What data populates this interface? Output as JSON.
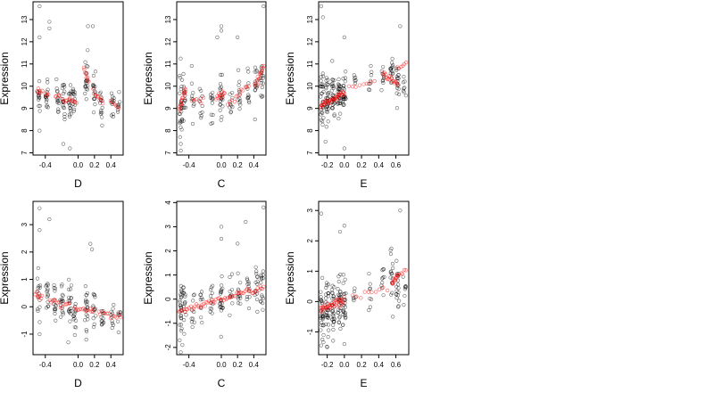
{
  "colors": {
    "observed": "#000000",
    "fitted": "#ff0000",
    "background": "#ffffff"
  },
  "chart_data": [
    {
      "type": "scatter",
      "panel": "row1-col1",
      "xlabel": "D",
      "ylabel": "Expression",
      "xlim": [
        -0.55,
        0.55
      ],
      "ylim": [
        6.9,
        13.8
      ],
      "xticks": [
        -0.4,
        0.0,
        0.2,
        0.4
      ],
      "xtick_labels": [
        "-0.4",
        "0.0",
        "0.2",
        "0.4"
      ],
      "yticks": [
        7,
        8,
        9,
        10,
        11,
        12,
        13
      ],
      "ytick_labels": [
        "7",
        "8",
        "9",
        "10",
        "11",
        "12",
        "13"
      ],
      "observed_clusters": [
        {
          "x": -0.48,
          "center": 9.6,
          "spread": 0.9,
          "n": 14
        },
        {
          "x": -0.38,
          "center": 9.7,
          "spread": 1.1,
          "n": 16
        },
        {
          "x": -0.25,
          "center": 9.5,
          "spread": 0.8,
          "n": 14
        },
        {
          "x": -0.18,
          "center": 9.4,
          "spread": 0.9,
          "n": 18
        },
        {
          "x": -0.1,
          "center": 9.3,
          "spread": 1.0,
          "n": 18
        },
        {
          "x": -0.05,
          "center": 9.3,
          "spread": 0.9,
          "n": 14
        },
        {
          "x": 0.1,
          "center": 10.3,
          "spread": 1.0,
          "n": 20
        },
        {
          "x": 0.2,
          "center": 9.6,
          "spread": 0.9,
          "n": 16
        },
        {
          "x": 0.28,
          "center": 9.2,
          "spread": 0.8,
          "n": 14
        },
        {
          "x": 0.42,
          "center": 9.3,
          "spread": 0.8,
          "n": 12
        },
        {
          "x": 0.5,
          "center": 9.1,
          "spread": 0.5,
          "n": 8
        }
      ],
      "outliers": [
        [
          -0.47,
          13.6
        ],
        [
          -0.47,
          12.2
        ],
        [
          -0.35,
          12.9
        ],
        [
          -0.35,
          12.6
        ],
        [
          0.12,
          12.7
        ],
        [
          0.18,
          12.7
        ],
        [
          -0.18,
          7.4
        ],
        [
          -0.1,
          7.2
        ],
        [
          -0.47,
          8.0
        ]
      ],
      "fitted": [
        {
          "x_from": -0.5,
          "x_to": -0.44,
          "y_from": 9.85,
          "y_to": 9.75,
          "n": 6
        },
        {
          "x_from": -0.4,
          "x_to": -0.36,
          "y_from": 9.65,
          "y_to": 9.6,
          "n": 4
        },
        {
          "x_from": -0.28,
          "x_to": -0.22,
          "y_from": 9.6,
          "y_to": 9.55,
          "n": 4
        },
        {
          "x_from": -0.2,
          "x_to": -0.02,
          "y_from": 9.4,
          "y_to": 9.3,
          "n": 12
        },
        {
          "x_from": 0.07,
          "x_to": 0.13,
          "y_from": 10.85,
          "y_to": 10.2,
          "n": 8
        },
        {
          "x_from": 0.18,
          "x_to": 0.3,
          "y_from": 9.7,
          "y_to": 9.3,
          "n": 10
        },
        {
          "x_from": 0.4,
          "x_to": 0.5,
          "y_from": 9.3,
          "y_to": 9.1,
          "n": 6
        }
      ]
    },
    {
      "type": "scatter",
      "panel": "row1-col2",
      "xlabel": "C",
      "ylabel": "Expression",
      "xlim": [
        -0.55,
        0.55
      ],
      "ylim": [
        6.9,
        13.8
      ],
      "xticks": [
        -0.4,
        0.0,
        0.2,
        0.4
      ],
      "xtick_labels": [
        "-0.4",
        "0.0",
        "0.2",
        "0.4"
      ],
      "yticks": [
        7,
        8,
        9,
        10,
        11,
        12,
        13
      ],
      "ytick_labels": [
        "7",
        "8",
        "9",
        "10",
        "11",
        "12",
        "13"
      ],
      "observed_clusters": [
        {
          "x": -0.5,
          "center": 9.0,
          "spread": 1.5,
          "n": 26
        },
        {
          "x": -0.45,
          "center": 9.6,
          "spread": 1.1,
          "n": 14
        },
        {
          "x": -0.35,
          "center": 9.2,
          "spread": 0.9,
          "n": 10
        },
        {
          "x": -0.25,
          "center": 9.3,
          "spread": 0.8,
          "n": 10
        },
        {
          "x": -0.12,
          "center": 9.4,
          "spread": 0.9,
          "n": 12
        },
        {
          "x": 0.0,
          "center": 9.6,
          "spread": 1.1,
          "n": 20
        },
        {
          "x": 0.12,
          "center": 9.4,
          "spread": 0.8,
          "n": 10
        },
        {
          "x": 0.22,
          "center": 9.7,
          "spread": 1.0,
          "n": 12
        },
        {
          "x": 0.33,
          "center": 9.9,
          "spread": 0.9,
          "n": 12
        },
        {
          "x": 0.43,
          "center": 10.2,
          "spread": 1.0,
          "n": 14
        },
        {
          "x": 0.5,
          "center": 10.5,
          "spread": 1.0,
          "n": 16
        }
      ],
      "outliers": [
        [
          0.0,
          12.7
        ],
        [
          0.0,
          12.5
        ],
        [
          -0.05,
          12.2
        ],
        [
          0.2,
          12.2
        ],
        [
          0.52,
          13.6
        ],
        [
          -0.5,
          7.1
        ],
        [
          -0.5,
          7.4
        ]
      ],
      "fitted": [
        {
          "x_from": -0.52,
          "x_to": -0.44,
          "y_from": 8.9,
          "y_to": 9.9,
          "n": 16
        },
        {
          "x_from": -0.36,
          "x_to": -0.22,
          "y_from": 9.3,
          "y_to": 9.4,
          "n": 6
        },
        {
          "x_from": -0.06,
          "x_to": 0.04,
          "y_from": 9.5,
          "y_to": 9.7,
          "n": 12
        },
        {
          "x_from": 0.08,
          "x_to": 0.16,
          "y_from": 9.2,
          "y_to": 9.3,
          "n": 4
        },
        {
          "x_from": 0.18,
          "x_to": 0.34,
          "y_from": 9.5,
          "y_to": 10.0,
          "n": 8
        },
        {
          "x_from": 0.42,
          "x_to": 0.52,
          "y_from": 10.0,
          "y_to": 10.9,
          "n": 14
        }
      ]
    },
    {
      "type": "scatter",
      "panel": "row1-col3",
      "xlabel": "E",
      "ylabel": "Expression",
      "xlim": [
        -0.3,
        0.75
      ],
      "ylim": [
        6.9,
        13.8
      ],
      "xticks": [
        -0.2,
        0.0,
        0.2,
        0.4,
        0.6
      ],
      "xtick_labels": [
        "-0.2",
        "0.0",
        "0.2",
        "0.4",
        "0.6"
      ],
      "yticks": [
        7,
        8,
        9,
        10,
        11,
        12,
        13
      ],
      "ytick_labels": [
        "7",
        "8",
        "9",
        "10",
        "11",
        "12",
        "13"
      ],
      "observed_clusters": [
        {
          "x": -0.26,
          "center": 9.3,
          "spread": 1.3,
          "n": 30
        },
        {
          "x": -0.2,
          "center": 9.4,
          "spread": 1.2,
          "n": 30
        },
        {
          "x": -0.13,
          "center": 9.5,
          "spread": 1.0,
          "n": 30
        },
        {
          "x": -0.06,
          "center": 9.5,
          "spread": 1.0,
          "n": 28
        },
        {
          "x": 0.0,
          "center": 9.6,
          "spread": 1.0,
          "n": 24
        },
        {
          "x": 0.12,
          "center": 10.2,
          "spread": 0.4,
          "n": 6
        },
        {
          "x": 0.3,
          "center": 10.3,
          "spread": 0.5,
          "n": 8
        },
        {
          "x": 0.45,
          "center": 10.5,
          "spread": 0.6,
          "n": 10
        },
        {
          "x": 0.55,
          "center": 10.6,
          "spread": 0.7,
          "n": 16
        },
        {
          "x": 0.62,
          "center": 10.3,
          "spread": 0.9,
          "n": 18
        },
        {
          "x": 0.7,
          "center": 10.2,
          "spread": 0.7,
          "n": 8
        }
      ],
      "outliers": [
        [
          -0.27,
          13.6
        ],
        [
          -0.25,
          13.1
        ],
        [
          0.0,
          12.2
        ],
        [
          0.65,
          12.7
        ],
        [
          0.0,
          7.2
        ],
        [
          -0.22,
          7.5
        ]
      ],
      "fitted": [
        {
          "x_from": -0.28,
          "x_to": 0.0,
          "y_from": 9.1,
          "y_to": 9.7,
          "n": 40
        },
        {
          "x_from": 0.05,
          "x_to": 0.35,
          "y_from": 9.9,
          "y_to": 10.2,
          "n": 8
        },
        {
          "x_from": 0.45,
          "x_to": 0.62,
          "y_from": 10.6,
          "y_to": 10.1,
          "n": 18
        },
        {
          "x_from": 0.62,
          "x_to": 0.72,
          "y_from": 10.8,
          "y_to": 11.0,
          "n": 6
        }
      ]
    },
    {
      "type": "scatter",
      "panel": "row2-col1",
      "xlabel": "D",
      "ylabel": "Expression",
      "xlim": [
        -0.55,
        0.55
      ],
      "ylim": [
        -1.75,
        3.85
      ],
      "xticks": [
        -0.4,
        0.0,
        0.2,
        0.4
      ],
      "xtick_labels": [
        "-0.4",
        "0.0",
        "0.2",
        "0.4"
      ],
      "yticks": [
        -1,
        0,
        1,
        2,
        3
      ],
      "ytick_labels": [
        "-1",
        "0",
        "1",
        "2",
        "3"
      ],
      "observed_clusters": [
        {
          "x": -0.48,
          "center": 0.2,
          "spread": 0.9,
          "n": 14
        },
        {
          "x": -0.38,
          "center": 0.3,
          "spread": 0.8,
          "n": 14
        },
        {
          "x": -0.28,
          "center": 0.0,
          "spread": 0.8,
          "n": 14
        },
        {
          "x": -0.2,
          "center": 0.0,
          "spread": 0.8,
          "n": 16
        },
        {
          "x": -0.1,
          "center": -0.1,
          "spread": 0.9,
          "n": 18
        },
        {
          "x": -0.04,
          "center": -0.2,
          "spread": 0.8,
          "n": 14
        },
        {
          "x": 0.1,
          "center": 0.0,
          "spread": 1.0,
          "n": 20
        },
        {
          "x": 0.2,
          "center": -0.2,
          "spread": 0.8,
          "n": 14
        },
        {
          "x": 0.3,
          "center": -0.3,
          "spread": 0.7,
          "n": 12
        },
        {
          "x": 0.42,
          "center": -0.3,
          "spread": 0.6,
          "n": 10
        },
        {
          "x": 0.5,
          "center": -0.4,
          "spread": 0.5,
          "n": 8
        }
      ],
      "outliers": [
        [
          -0.47,
          3.6
        ],
        [
          -0.35,
          3.2
        ],
        [
          -0.47,
          2.8
        ],
        [
          0.15,
          2.3
        ],
        [
          0.17,
          2.1
        ],
        [
          -0.12,
          -1.3
        ],
        [
          0.1,
          -1.2
        ],
        [
          -0.47,
          -1.0
        ]
      ],
      "fitted": [
        {
          "x_from": -0.52,
          "x_to": -0.44,
          "y_from": 0.45,
          "y_to": 0.35,
          "n": 8
        },
        {
          "x_from": -0.35,
          "x_to": -0.1,
          "y_from": 0.25,
          "y_to": 0.05,
          "n": 14
        },
        {
          "x_from": -0.05,
          "x_to": 0.2,
          "y_from": 0.0,
          "y_to": -0.2,
          "n": 14
        },
        {
          "x_from": 0.25,
          "x_to": 0.52,
          "y_from": -0.2,
          "y_to": -0.4,
          "n": 12
        }
      ]
    },
    {
      "type": "scatter",
      "panel": "row2-col2",
      "xlabel": "C",
      "ylabel": "Expression",
      "xlim": [
        -0.55,
        0.55
      ],
      "ylim": [
        -2.3,
        4.05
      ],
      "xticks": [
        -0.4,
        0.0,
        0.2,
        0.4
      ],
      "xtick_labels": [
        "-0.4",
        "0.0",
        "0.2",
        "0.4"
      ],
      "yticks": [
        -2,
        -1,
        0,
        1,
        2,
        3,
        4
      ],
      "ytick_labels": [
        "-2",
        "-1",
        "0",
        "1",
        "2",
        "3",
        "4"
      ],
      "observed_clusters": [
        {
          "x": -0.5,
          "center": -0.5,
          "spread": 1.3,
          "n": 26
        },
        {
          "x": -0.45,
          "center": -0.2,
          "spread": 1.0,
          "n": 14
        },
        {
          "x": -0.35,
          "center": -0.3,
          "spread": 0.9,
          "n": 10
        },
        {
          "x": -0.25,
          "center": -0.2,
          "spread": 0.8,
          "n": 10
        },
        {
          "x": -0.12,
          "center": -0.1,
          "spread": 0.9,
          "n": 12
        },
        {
          "x": 0.0,
          "center": 0.0,
          "spread": 1.1,
          "n": 22
        },
        {
          "x": 0.12,
          "center": 0.1,
          "spread": 0.8,
          "n": 10
        },
        {
          "x": 0.22,
          "center": 0.2,
          "spread": 0.9,
          "n": 12
        },
        {
          "x": 0.33,
          "center": 0.3,
          "spread": 0.9,
          "n": 12
        },
        {
          "x": 0.43,
          "center": 0.4,
          "spread": 1.0,
          "n": 14
        },
        {
          "x": 0.5,
          "center": 0.5,
          "spread": 1.0,
          "n": 16
        }
      ],
      "outliers": [
        [
          0.0,
          3.0
        ],
        [
          0.0,
          2.5
        ],
        [
          0.2,
          2.3
        ],
        [
          0.3,
          3.2
        ],
        [
          0.52,
          3.8
        ],
        [
          -0.5,
          -2.2
        ],
        [
          -0.48,
          -1.9
        ]
      ],
      "fitted": [
        {
          "x_from": -0.52,
          "x_to": 0.52,
          "y_from": -0.5,
          "y_to": 0.5,
          "n": 60
        }
      ]
    },
    {
      "type": "scatter",
      "panel": "row2-col3",
      "xlabel": "E",
      "ylabel": "Expression",
      "xlim": [
        -0.3,
        0.75
      ],
      "ylim": [
        -1.75,
        3.3
      ],
      "xticks": [
        -0.2,
        0.0,
        0.2,
        0.4,
        0.6
      ],
      "xtick_labels": [
        "-0.2",
        "0.0",
        "0.2",
        "0.4",
        "0.6"
      ],
      "yticks": [
        -1,
        0,
        1,
        2,
        3
      ],
      "ytick_labels": [
        "-1",
        "0",
        "1",
        "2",
        "3"
      ],
      "observed_clusters": [
        {
          "x": -0.26,
          "center": -0.4,
          "spread": 1.1,
          "n": 30
        },
        {
          "x": -0.2,
          "center": -0.3,
          "spread": 1.0,
          "n": 30
        },
        {
          "x": -0.13,
          "center": -0.2,
          "spread": 0.9,
          "n": 28
        },
        {
          "x": -0.06,
          "center": -0.1,
          "spread": 0.9,
          "n": 28
        },
        {
          "x": 0.0,
          "center": 0.0,
          "spread": 1.0,
          "n": 24
        },
        {
          "x": 0.12,
          "center": 0.1,
          "spread": 0.4,
          "n": 6
        },
        {
          "x": 0.3,
          "center": 0.3,
          "spread": 0.6,
          "n": 8
        },
        {
          "x": 0.45,
          "center": 0.5,
          "spread": 0.7,
          "n": 10
        },
        {
          "x": 0.55,
          "center": 0.7,
          "spread": 0.8,
          "n": 16
        },
        {
          "x": 0.62,
          "center": 0.6,
          "spread": 0.9,
          "n": 18
        },
        {
          "x": 0.7,
          "center": 0.6,
          "spread": 0.7,
          "n": 8
        }
      ],
      "outliers": [
        [
          -0.27,
          2.9
        ],
        [
          0.0,
          2.5
        ],
        [
          0.65,
          3.0
        ],
        [
          -0.05,
          2.3
        ],
        [
          -0.2,
          -1.5
        ],
        [
          0.0,
          -1.4
        ]
      ],
      "fitted": [
        {
          "x_from": -0.28,
          "x_to": 0.0,
          "y_from": -0.3,
          "y_to": 0.05,
          "n": 40
        },
        {
          "x_from": 0.1,
          "x_to": 0.5,
          "y_from": 0.1,
          "y_to": 0.5,
          "n": 10
        },
        {
          "x_from": 0.55,
          "x_to": 0.62,
          "y_from": 0.55,
          "y_to": 0.85,
          "n": 12
        },
        {
          "x_from": 0.62,
          "x_to": 0.72,
          "y_from": 0.85,
          "y_to": 1.0,
          "n": 6
        }
      ]
    }
  ]
}
